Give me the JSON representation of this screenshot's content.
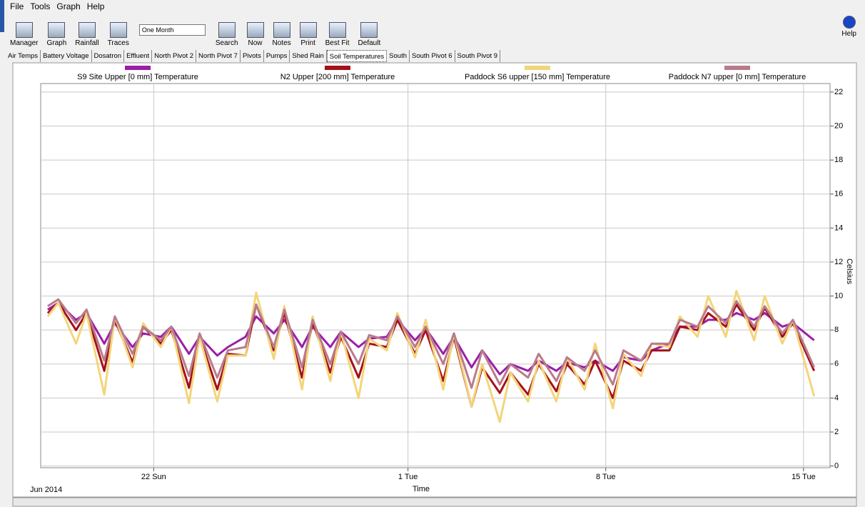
{
  "ui": {
    "menu": [
      "File",
      "Tools",
      "Graph",
      "Help"
    ],
    "toolbar": [
      "Manager",
      "Graph",
      "Rainfall",
      "Traces",
      "Search",
      "Now",
      "Notes",
      "Print",
      "Best Fit",
      "Default"
    ],
    "range": "One Month",
    "help": "Help",
    "tabs": [
      "Air Temps",
      "Battery Voltage",
      "Dosatron",
      "Effluent",
      "North Pivot 2",
      "North Pivot 7",
      "Pivots",
      "Pumps",
      "Shed Rain",
      "Soil Temperatures",
      "South",
      "South Pivot 6",
      "South Pivot 9"
    ],
    "active_tab": "Soil Temperatures"
  },
  "chart_data": {
    "type": "line",
    "xlabel": "Time",
    "xlabel_start": "Jun 2014",
    "ylabel": "Celsius",
    "x": [
      "2014-06-18T06:00",
      "2014-06-18T15:00",
      "2014-06-19T06:00",
      "2014-06-19T15:00",
      "2014-06-20T06:00",
      "2014-06-20T15:00",
      "2014-06-21T06:00",
      "2014-06-21T15:00",
      "2014-06-22T06:00",
      "2014-06-22T15:00",
      "2014-06-23T06:00",
      "2014-06-23T15:00",
      "2014-06-24T06:00",
      "2014-06-24T15:00",
      "2014-06-25T06:00",
      "2014-06-25T15:00",
      "2014-06-26T06:00",
      "2014-06-26T15:00",
      "2014-06-27T06:00",
      "2014-06-27T15:00",
      "2014-06-28T06:00",
      "2014-06-28T15:00",
      "2014-06-29T06:00",
      "2014-06-29T15:00",
      "2014-06-30T06:00",
      "2014-06-30T15:00",
      "2014-07-01T06:00",
      "2014-07-01T15:00",
      "2014-07-02T06:00",
      "2014-07-02T15:00",
      "2014-07-03T06:00",
      "2014-07-03T15:00",
      "2014-07-04T06:00",
      "2014-07-04T15:00",
      "2014-07-05T06:00",
      "2014-07-05T15:00",
      "2014-07-06T06:00",
      "2014-07-06T15:00",
      "2014-07-07T06:00",
      "2014-07-07T15:00",
      "2014-07-08T06:00",
      "2014-07-08T15:00",
      "2014-07-09T06:00",
      "2014-07-09T15:00",
      "2014-07-10T06:00",
      "2014-07-10T15:00",
      "2014-07-11T06:00",
      "2014-07-11T15:00",
      "2014-07-12T06:00",
      "2014-07-12T15:00",
      "2014-07-13T06:00",
      "2014-07-13T15:00",
      "2014-07-14T06:00",
      "2014-07-14T15:00",
      "2014-07-15T09:00"
    ],
    "series": [
      {
        "name": "S9 Site Upper  [0 mm] Temperature",
        "color": "#9a1fa8",
        "values": [
          9.2,
          9.6,
          8.6,
          9.0,
          7.2,
          8.4,
          7.0,
          7.8,
          7.6,
          8.2,
          6.6,
          7.6,
          6.5,
          7.0,
          7.6,
          8.8,
          7.8,
          8.6,
          7.0,
          8.2,
          7.0,
          7.9,
          7.0,
          7.5,
          7.6,
          8.6,
          7.4,
          8.1,
          6.6,
          7.6,
          5.8,
          6.8,
          5.4,
          6.0,
          5.6,
          6.2,
          5.6,
          6.1,
          5.8,
          6.2,
          5.6,
          6.4,
          6.2,
          6.8,
          7.2,
          8.2,
          8.2,
          8.6,
          8.6,
          9.0,
          8.6,
          9.0,
          8.2,
          8.4,
          7.4
        ]
      },
      {
        "name": "N2 Upper  [200 mm] Temperature",
        "color": "#a5101a",
        "values": [
          9.0,
          9.6,
          8.0,
          9.0,
          5.6,
          8.6,
          6.1,
          8.2,
          7.2,
          8.0,
          4.6,
          7.6,
          4.5,
          6.6,
          6.5,
          9.5,
          6.8,
          9.0,
          5.2,
          8.5,
          5.5,
          7.6,
          5.2,
          7.2,
          7.0,
          8.6,
          6.6,
          8.0,
          5.0,
          7.6,
          3.5,
          5.8,
          4.3,
          5.5,
          4.2,
          6.0,
          4.4,
          6.0,
          4.8,
          6.2,
          4.0,
          6.2,
          5.6,
          6.8,
          6.8,
          8.2,
          8.0,
          9.0,
          8.2,
          9.5,
          8.0,
          9.3,
          7.6,
          8.4,
          5.6
        ]
      },
      {
        "name": "Paddock S6 upper  [150 mm] Temperature",
        "color": "#f3d57a",
        "values": [
          8.8,
          9.6,
          7.2,
          9.0,
          4.2,
          8.8,
          5.8,
          8.4,
          7.0,
          8.2,
          3.7,
          7.6,
          3.8,
          6.5,
          6.5,
          10.2,
          6.3,
          9.4,
          4.5,
          8.8,
          5.0,
          7.9,
          4.0,
          7.5,
          6.8,
          9.0,
          6.4,
          8.6,
          4.5,
          7.8,
          3.5,
          6.0,
          2.6,
          5.5,
          3.8,
          6.2,
          3.8,
          6.4,
          4.5,
          7.2,
          3.4,
          6.6,
          5.3,
          7.2,
          7.0,
          8.8,
          7.6,
          10.0,
          7.6,
          10.3,
          7.4,
          10.0,
          7.2,
          8.6,
          4.1
        ]
      },
      {
        "name": "Paddock N7 upper  [0 mm] Temperature",
        "color": "#b97b8c",
        "values": [
          9.4,
          9.8,
          8.4,
          9.2,
          6.2,
          8.8,
          6.6,
          8.2,
          7.4,
          8.2,
          5.3,
          7.8,
          5.2,
          6.8,
          7.0,
          9.5,
          7.0,
          9.2,
          5.8,
          8.6,
          6.0,
          7.9,
          6.0,
          7.7,
          7.4,
          8.8,
          7.0,
          8.2,
          6.0,
          7.8,
          4.6,
          6.8,
          4.8,
          6.0,
          5.2,
          6.6,
          5.0,
          6.4,
          5.6,
          6.8,
          4.8,
          6.8,
          6.2,
          7.2,
          7.2,
          8.6,
          8.2,
          9.4,
          8.4,
          9.7,
          8.2,
          9.4,
          7.8,
          8.6,
          5.8
        ]
      }
    ],
    "xlim": [
      "2014-06-18T00:00",
      "2014-07-15T22:30"
    ],
    "xticks": [
      {
        "value": "2014-06-22T00:00",
        "label": "22 Sun"
      },
      {
        "value": "2014-07-01T00:00",
        "label": "1 Tue"
      },
      {
        "value": "2014-07-08T00:00",
        "label": "8 Tue"
      },
      {
        "value": "2014-07-15T00:00",
        "label": "15 Tue"
      }
    ],
    "ylim": [
      -0.1,
      22.5
    ],
    "yticks": [
      0,
      2,
      4,
      6,
      8,
      10,
      12,
      14,
      16,
      18,
      20,
      22
    ],
    "grid": true
  }
}
